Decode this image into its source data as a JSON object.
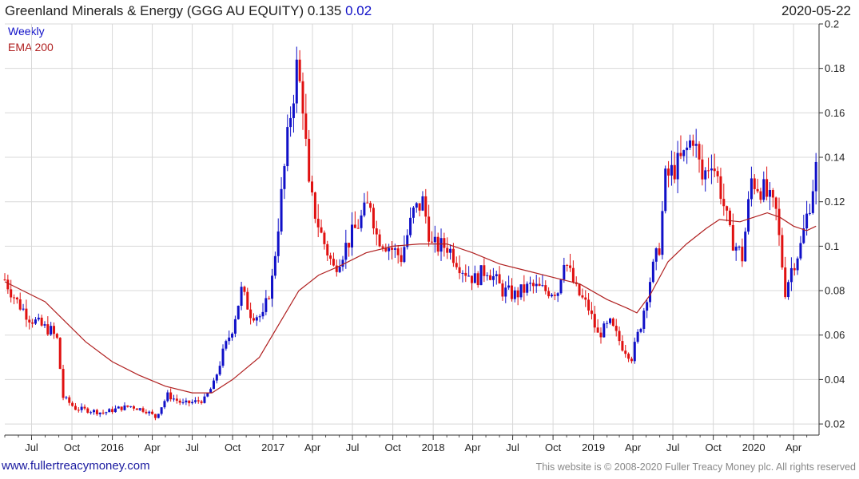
{
  "header": {
    "title_prefix": "Greenland Minerals & Energy (GGG AU EQUITY) 0.135",
    "title_change": "0.02",
    "date": "2020-05-22"
  },
  "legend": {
    "weekly": "Weekly",
    "ema": "EMA 200"
  },
  "footer": {
    "left": "www.fullertreacymoney.com",
    "right": "This website is © 2008-2020 Fuller Treacy Money plc. All rights reserved"
  },
  "colors": {
    "up": "#1010c8",
    "down": "#e01010",
    "ema": "#b02020",
    "grid": "#d8d8d8"
  },
  "chart_data": {
    "type": "candlestick",
    "title": "Greenland Minerals & Energy (GGG AU EQUITY) 0.135 0.02",
    "frequency": "Weekly",
    "ylim": [
      0.015,
      0.2
    ],
    "y_ticks": [
      "0.02",
      "0.04",
      "0.06",
      "0.08",
      "0.1",
      "0.12",
      "0.14",
      "0.16",
      "0.18",
      "0.2"
    ],
    "x_ticks": [
      "Jul",
      "Oct",
      "2016",
      "Apr",
      "Jul",
      "Oct",
      "2017",
      "Apr",
      "Jul",
      "Oct",
      "2018",
      "Apr",
      "Jul",
      "Oct",
      "2019",
      "Apr",
      "Jul",
      "Oct",
      "2020",
      "Apr"
    ],
    "x_start": "2015-05-01",
    "x_end": "2020-05-29",
    "grid": true,
    "legend_position": "top-left",
    "weekly_closes": [
      [
        "2015-05-01",
        0.085
      ],
      [
        "2015-05-29",
        0.075
      ],
      [
        "2015-06-26",
        0.068
      ],
      [
        "2015-07-24",
        0.064
      ],
      [
        "2015-08-14",
        0.062
      ],
      [
        "2015-08-28",
        0.058
      ],
      [
        "2015-09-11",
        0.032
      ],
      [
        "2015-10-09",
        0.027
      ],
      [
        "2015-11-13",
        0.026
      ],
      [
        "2015-12-11",
        0.025
      ],
      [
        "2016-01-15",
        0.027
      ],
      [
        "2016-02-12",
        0.028
      ],
      [
        "2016-03-18",
        0.026
      ],
      [
        "2016-04-08",
        0.023
      ],
      [
        "2016-05-06",
        0.033
      ],
      [
        "2016-06-10",
        0.029
      ],
      [
        "2016-07-08",
        0.03
      ],
      [
        "2016-07-29",
        0.031
      ],
      [
        "2016-08-19",
        0.038
      ],
      [
        "2016-09-09",
        0.052
      ],
      [
        "2016-09-30",
        0.063
      ],
      [
        "2016-10-21",
        0.08
      ],
      [
        "2016-11-11",
        0.07
      ],
      [
        "2016-12-09",
        0.068
      ],
      [
        "2016-12-30",
        0.085
      ],
      [
        "2017-01-13",
        0.11
      ],
      [
        "2017-01-27",
        0.135
      ],
      [
        "2017-02-10",
        0.16
      ],
      [
        "2017-02-24",
        0.18
      ],
      [
        "2017-03-10",
        0.165
      ],
      [
        "2017-03-24",
        0.125
      ],
      [
        "2017-04-21",
        0.105
      ],
      [
        "2017-05-19",
        0.09
      ],
      [
        "2017-06-16",
        0.1
      ],
      [
        "2017-07-14",
        0.11
      ],
      [
        "2017-08-11",
        0.12
      ],
      [
        "2017-08-25",
        0.105
      ],
      [
        "2017-09-22",
        0.1
      ],
      [
        "2017-10-20",
        0.095
      ],
      [
        "2017-11-17",
        0.115
      ],
      [
        "2017-12-08",
        0.12
      ],
      [
        "2017-12-29",
        0.1
      ],
      [
        "2018-02-02",
        0.1
      ],
      [
        "2018-03-09",
        0.09
      ],
      [
        "2018-04-06",
        0.085
      ],
      [
        "2018-05-04",
        0.09
      ],
      [
        "2018-06-08",
        0.08
      ],
      [
        "2018-07-06",
        0.078
      ],
      [
        "2018-08-10",
        0.082
      ],
      [
        "2018-09-14",
        0.08
      ],
      [
        "2018-10-12",
        0.08
      ],
      [
        "2018-10-26",
        0.095
      ],
      [
        "2018-11-23",
        0.08
      ],
      [
        "2018-12-21",
        0.072
      ],
      [
        "2019-01-11",
        0.06
      ],
      [
        "2019-02-08",
        0.065
      ],
      [
        "2019-03-08",
        0.055
      ],
      [
        "2019-03-29",
        0.05
      ],
      [
        "2019-04-19",
        0.065
      ],
      [
        "2019-05-10",
        0.085
      ],
      [
        "2019-05-31",
        0.1
      ],
      [
        "2019-06-14",
        0.13
      ],
      [
        "2019-07-05",
        0.135
      ],
      [
        "2019-07-26",
        0.14
      ],
      [
        "2019-08-16",
        0.15
      ],
      [
        "2019-09-06",
        0.13
      ],
      [
        "2019-09-27",
        0.14
      ],
      [
        "2019-10-18",
        0.125
      ],
      [
        "2019-11-08",
        0.105
      ],
      [
        "2019-12-06",
        0.095
      ],
      [
        "2019-12-27",
        0.13
      ],
      [
        "2020-01-24",
        0.125
      ],
      [
        "2020-02-21",
        0.115
      ],
      [
        "2020-03-13",
        0.08
      ],
      [
        "2020-03-27",
        0.09
      ],
      [
        "2020-04-17",
        0.1
      ],
      [
        "2020-05-08",
        0.12
      ],
      [
        "2020-05-22",
        0.135
      ]
    ],
    "ema_200": [
      [
        "2015-05-01",
        0.084
      ],
      [
        "2015-08-01",
        0.075
      ],
      [
        "2015-11-01",
        0.057
      ],
      [
        "2016-01-01",
        0.048
      ],
      [
        "2016-03-01",
        0.042
      ],
      [
        "2016-05-01",
        0.037
      ],
      [
        "2016-07-01",
        0.034
      ],
      [
        "2016-08-15",
        0.034
      ],
      [
        "2016-10-01",
        0.04
      ],
      [
        "2016-12-01",
        0.05
      ],
      [
        "2017-01-15",
        0.065
      ],
      [
        "2017-03-01",
        0.08
      ],
      [
        "2017-04-15",
        0.087
      ],
      [
        "2017-06-01",
        0.091
      ],
      [
        "2017-08-01",
        0.097
      ],
      [
        "2017-10-01",
        0.1
      ],
      [
        "2017-12-01",
        0.101
      ],
      [
        "2018-02-01",
        0.101
      ],
      [
        "2018-04-01",
        0.097
      ],
      [
        "2018-06-01",
        0.092
      ],
      [
        "2018-08-01",
        0.089
      ],
      [
        "2018-10-01",
        0.086
      ],
      [
        "2018-12-01",
        0.083
      ],
      [
        "2019-02-01",
        0.076
      ],
      [
        "2019-03-20",
        0.072
      ],
      [
        "2019-04-10",
        0.07
      ],
      [
        "2019-05-10",
        0.078
      ],
      [
        "2019-06-20",
        0.093
      ],
      [
        "2019-08-01",
        0.101
      ],
      [
        "2019-09-15",
        0.108
      ],
      [
        "2019-10-15",
        0.112
      ],
      [
        "2019-12-01",
        0.111
      ],
      [
        "2020-01-01",
        0.113
      ],
      [
        "2020-02-01",
        0.115
      ],
      [
        "2020-03-01",
        0.113
      ],
      [
        "2020-04-01",
        0.109
      ],
      [
        "2020-05-01",
        0.107
      ],
      [
        "2020-05-22",
        0.109
      ]
    ]
  }
}
